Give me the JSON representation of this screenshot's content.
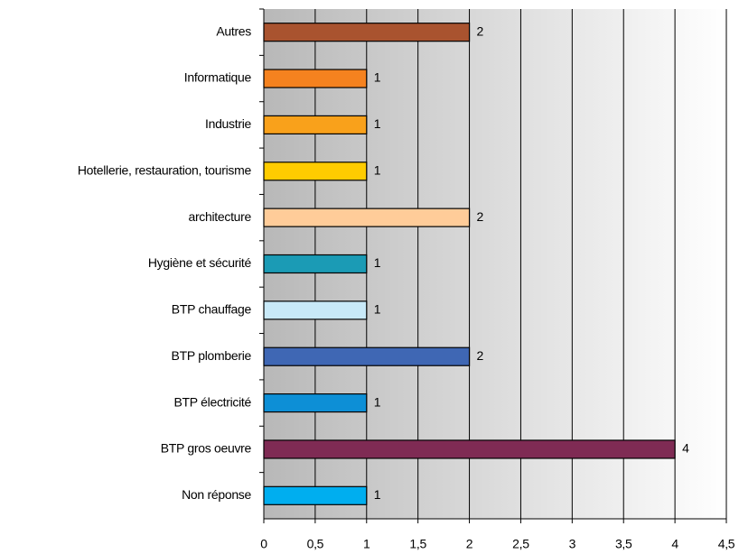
{
  "chart_data": {
    "type": "bar",
    "orientation": "horizontal",
    "categories": [
      "Autres",
      "Informatique",
      "Industrie",
      "Hotellerie, restauration, tourisme",
      "architecture",
      "Hygiène et sécurité",
      "BTP chauffage",
      "BTP plomberie",
      "BTP électricité",
      "BTP gros oeuvre",
      "Non réponse"
    ],
    "values": [
      2,
      1,
      1,
      1,
      2,
      1,
      1,
      2,
      1,
      4,
      1
    ],
    "colors": [
      "#a9532f",
      "#f5821f",
      "#f9a11b",
      "#ffcc00",
      "#ffcc99",
      "#1b9bb5",
      "#c8e9f8",
      "#3f67b4",
      "#0d8fd6",
      "#7f2b54",
      "#00aeef"
    ],
    "xlim": [
      0,
      4.5
    ],
    "xticks": [
      0,
      {
        "value": 0.5,
        "label": "0,5"
      },
      1,
      {
        "value": 1.5,
        "label": "1,5"
      },
      2,
      {
        "value": 2.5,
        "label": "2,5"
      },
      3,
      {
        "value": 3.5,
        "label": "3,5"
      },
      4,
      {
        "value": 4.5,
        "label": "4,5"
      }
    ],
    "grid": true
  }
}
